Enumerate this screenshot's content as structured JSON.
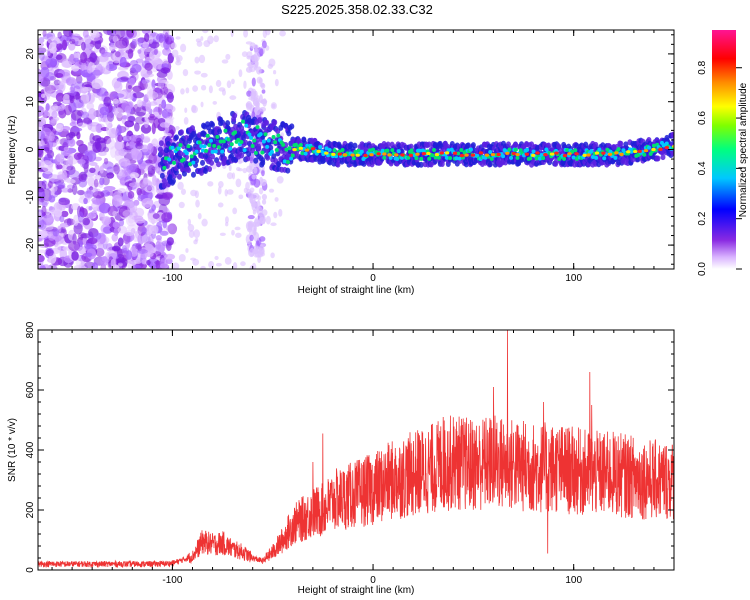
{
  "title": "S225.2025.358.02.33.C32",
  "chart_data": [
    {
      "type": "heatmap",
      "name": "spectrogram",
      "xlabel": "Height of straight line (km)",
      "ylabel": "Frequency (Hz)",
      "xlim": [
        -167,
        150
      ],
      "ylim": [
        -25,
        25
      ],
      "xticks": [
        -100,
        0,
        100
      ],
      "yticks": [
        -20,
        -10,
        0,
        10,
        20
      ],
      "ridge": {
        "description_points_x": [
          -105,
          -95,
          -85,
          -75,
          -65,
          -58,
          -50,
          -40,
          -30,
          -20,
          -10,
          0,
          20,
          40,
          60,
          80,
          100,
          120,
          140,
          150
        ],
        "frequency_hz": [
          -3,
          -1,
          0,
          2,
          3,
          2,
          1,
          0,
          0,
          -1,
          -1,
          -1,
          -1,
          -1,
          -1,
          -1,
          -1,
          -1,
          0,
          1
        ]
      },
      "colorbar": {
        "label": "Normalized spectral amplitude",
        "range": [
          0.0,
          0.95
        ],
        "ticks": [
          "0.0",
          "0.2",
          "0.4",
          "0.6",
          "0.8"
        ],
        "colors": [
          "#ffffff",
          "#d9b3ff",
          "#8a2be2",
          "#0000ff",
          "#00c8ff",
          "#00ff7f",
          "#7fff00",
          "#ffff00",
          "#ff8c00",
          "#ff0000",
          "#ff1493"
        ]
      }
    },
    {
      "type": "line",
      "name": "snr",
      "xlabel": "Height of straight line (km)",
      "ylabel": "SNR (10 * v/v)",
      "xlim": [
        -167,
        150
      ],
      "ylim": [
        0,
        800
      ],
      "xticks": [
        -100,
        0,
        100
      ],
      "yticks": [
        0,
        200,
        400,
        600,
        800
      ],
      "color": "#ee3333",
      "envelope": {
        "x": [
          -167,
          -110,
          -100,
          -90,
          -85,
          -80,
          -75,
          -70,
          -65,
          -60,
          -55,
          -50,
          -45,
          -40,
          -35,
          -30,
          -25,
          -20,
          -10,
          0,
          10,
          20,
          30,
          40,
          50,
          60,
          70,
          80,
          90,
          100,
          110,
          120,
          130,
          140,
          150
        ],
        "y": [
          20,
          20,
          22,
          45,
          95,
          85,
          90,
          70,
          60,
          40,
          30,
          60,
          100,
          150,
          170,
          190,
          200,
          230,
          250,
          270,
          300,
          320,
          340,
          360,
          350,
          360,
          350,
          340,
          340,
          330,
          320,
          320,
          310,
          300,
          300
        ]
      },
      "spikes": [
        {
          "x": -30,
          "y": 360
        },
        {
          "x": -25,
          "y": 455
        },
        {
          "x": 35,
          "y": 510
        },
        {
          "x": 60,
          "y": 610
        },
        {
          "x": 67,
          "y": 800
        },
        {
          "x": 85,
          "y": 560
        },
        {
          "x": 87,
          "y": 55
        },
        {
          "x": 108,
          "y": 660
        },
        {
          "x": 109,
          "y": 550
        }
      ]
    }
  ]
}
